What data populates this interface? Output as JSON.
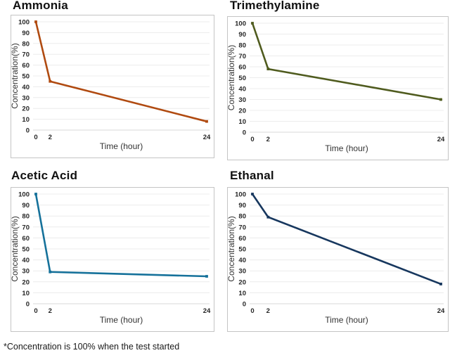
{
  "page": {
    "background": "#ffffff",
    "footnote": "*Concentration is 100% when the test started"
  },
  "chart_data": [
    {
      "type": "line",
      "title": "Ammonia",
      "x": [
        0,
        2,
        24
      ],
      "values": [
        100,
        45,
        8
      ],
      "color": "#b04a10",
      "xlabel": "Time (hour)",
      "ylabel": "Concentration(%)",
      "xlim": [
        0,
        24
      ],
      "ylim": [
        0,
        100
      ],
      "ytick_step": 10,
      "xticks": [
        0,
        2,
        24
      ],
      "grid": "horizontal",
      "legend": "none",
      "marker": "square"
    },
    {
      "type": "line",
      "title": "Trimethylamine",
      "x": [
        0,
        2,
        24
      ],
      "values": [
        100,
        58,
        30
      ],
      "color": "#4f5b1e",
      "xlabel": "Time (hour)",
      "ylabel": "Concentration(%)",
      "xlim": [
        0,
        24
      ],
      "ylim": [
        0,
        100
      ],
      "ytick_step": 10,
      "xticks": [
        0,
        2,
        24
      ],
      "grid": "horizontal",
      "legend": "none",
      "marker": "square"
    },
    {
      "type": "line",
      "title": "Acetic Acid",
      "x": [
        0,
        2,
        24
      ],
      "values": [
        100,
        29,
        25
      ],
      "color": "#15719a",
      "xlabel": "Time (hour)",
      "ylabel": "Concentration(%)",
      "xlim": [
        0,
        24
      ],
      "ylim": [
        0,
        100
      ],
      "ytick_step": 10,
      "xticks": [
        0,
        2,
        24
      ],
      "grid": "horizontal",
      "legend": "none",
      "marker": "square"
    },
    {
      "type": "line",
      "title": "Ethanal",
      "x": [
        0,
        2,
        24
      ],
      "values": [
        100,
        79,
        18
      ],
      "color": "#17375e",
      "xlabel": "Time (hour)",
      "ylabel": "Concentration(%)",
      "xlim": [
        0,
        24
      ],
      "ylim": [
        0,
        100
      ],
      "ytick_step": 10,
      "xticks": [
        0,
        2,
        24
      ],
      "grid": "horizontal",
      "legend": "none",
      "marker": "square"
    }
  ]
}
